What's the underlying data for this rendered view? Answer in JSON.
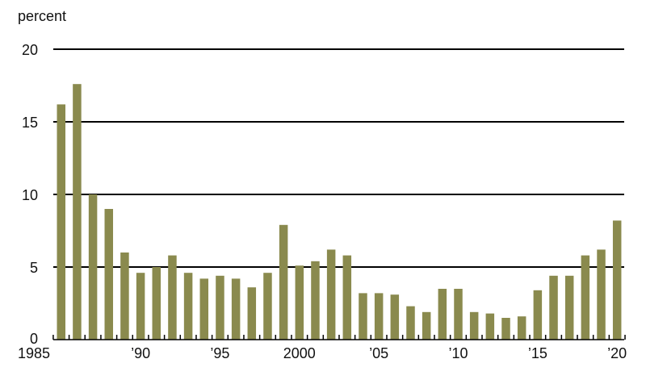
{
  "chart_data": {
    "type": "bar",
    "unit_label": "percent",
    "categories": [
      1985,
      1986,
      1987,
      1988,
      1989,
      1990,
      1991,
      1992,
      1993,
      1994,
      1995,
      1996,
      1997,
      1998,
      1999,
      2000,
      2001,
      2002,
      2003,
      2004,
      2005,
      2006,
      2007,
      2008,
      2009,
      2010,
      2011,
      2012,
      2013,
      2014,
      2015,
      2016,
      2017,
      2018,
      2019,
      2020
    ],
    "values": [
      16.2,
      17.6,
      10.0,
      9.0,
      6.0,
      4.6,
      5.0,
      5.8,
      4.6,
      4.2,
      4.4,
      4.2,
      3.6,
      4.6,
      7.9,
      5.1,
      5.4,
      6.2,
      5.8,
      3.2,
      3.2,
      3.1,
      2.3,
      1.9,
      3.5,
      3.5,
      1.9,
      1.8,
      1.5,
      1.6,
      3.4,
      4.4,
      4.4,
      5.8,
      6.2,
      8.2
    ],
    "ylim": [
      0,
      20
    ],
    "yticks": [
      0,
      5,
      10,
      15,
      20
    ],
    "xtick_labels": [
      {
        "year": 1985,
        "label": "1985"
      },
      {
        "year": 1990,
        "label": "’90"
      },
      {
        "year": 1995,
        "label": "’95"
      },
      {
        "year": 2000,
        "label": "2000"
      },
      {
        "year": 2005,
        "label": "’05"
      },
      {
        "year": 2010,
        "label": "’10"
      },
      {
        "year": 2015,
        "label": "’15"
      },
      {
        "year": 2020,
        "label": "’20"
      }
    ],
    "grid": true,
    "bar_color": "#8a8a4e"
  }
}
